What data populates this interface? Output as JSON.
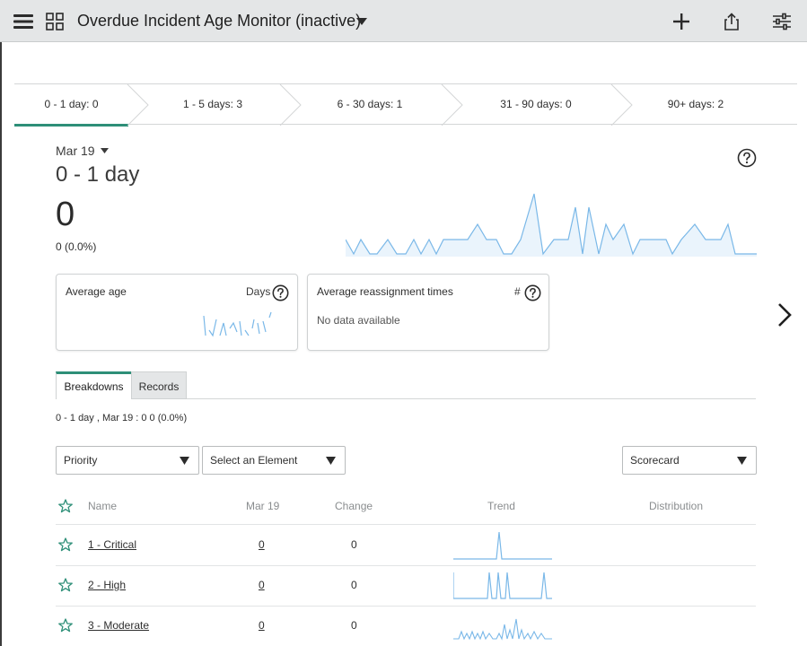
{
  "header": {
    "title": "Overdue Incident Age Monitor (inactive)",
    "icons": [
      "menu-icon",
      "grid-icon",
      "chevron-down-icon",
      "plus-icon",
      "share-icon",
      "sliders-icon"
    ]
  },
  "buckets": [
    {
      "label": "0 - 1 day: 0",
      "active": true
    },
    {
      "label": "1 - 5 days: 3",
      "active": false
    },
    {
      "label": "6 - 30 days: 1",
      "active": false
    },
    {
      "label": "31 - 90 days: 0",
      "active": false
    },
    {
      "label": "90+ days: 2",
      "active": false
    }
  ],
  "summary": {
    "date": "Mar 19",
    "bucket_title": "0 - 1 day",
    "value": "0",
    "value_detail": "0 (0.0%)",
    "accent_color": "#2e8f78",
    "sparkline_color": "#7ab8e8"
  },
  "cards": [
    {
      "title": "Average age",
      "unit": "Days",
      "no_data": ""
    },
    {
      "title": "Average reassignment times",
      "unit": "#",
      "no_data": "No data available"
    }
  ],
  "tabs": [
    {
      "label": "Breakdowns",
      "active": true
    },
    {
      "label": "Records",
      "active": false
    }
  ],
  "breakdown_info": "0 - 1 day , Mar 19 : 0 0 (0.0%)",
  "selects": {
    "breakdown": "Priority",
    "element": "Select an Element",
    "view": "Scorecard"
  },
  "table": {
    "headers": {
      "name": "Name",
      "date": "Mar 19",
      "change": "Change",
      "trend": "Trend",
      "distribution": "Distribution"
    },
    "rows": [
      {
        "name": "1 - Critical",
        "value": "0",
        "change": "0"
      },
      {
        "name": "2 - High",
        "value": "0",
        "change": "0"
      },
      {
        "name": "3 - Moderate",
        "value": "0",
        "change": "0"
      }
    ]
  }
}
